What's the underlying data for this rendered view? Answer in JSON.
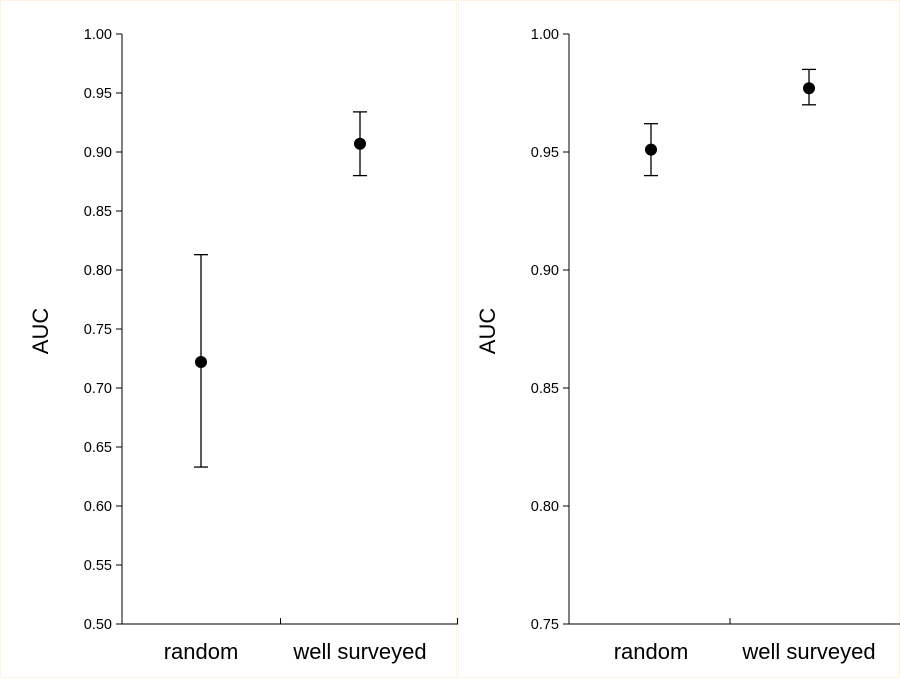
{
  "chart_data": [
    {
      "type": "scatter",
      "title": "",
      "xlabel": "",
      "ylabel": "AUC",
      "ylim": [
        0.5,
        1.0
      ],
      "yticks": [
        0.5,
        0.55,
        0.6,
        0.65,
        0.7,
        0.75,
        0.8,
        0.85,
        0.9,
        0.95,
        1.0
      ],
      "ytick_labels": [
        "0.50",
        "0.55",
        "0.60",
        "0.65",
        "0.70",
        "0.75",
        "0.80",
        "0.85",
        "0.90",
        "0.95",
        "1.00"
      ],
      "categories": [
        "random",
        "well surveyed"
      ],
      "points": [
        {
          "category": "random",
          "y": 0.722,
          "ylow": 0.633,
          "yhigh": 0.813
        },
        {
          "category": "well surveyed",
          "y": 0.907,
          "ylow": 0.88,
          "yhigh": 0.934
        }
      ],
      "grid": false,
      "marker_color": "#000000"
    },
    {
      "type": "scatter",
      "title": "",
      "xlabel": "",
      "ylabel": "AUC",
      "ylim": [
        0.75,
        1.0
      ],
      "yticks": [
        0.75,
        0.8,
        0.85,
        0.9,
        0.95,
        1.0
      ],
      "ytick_labels": [
        "0.75",
        "0.80",
        "0.85",
        "0.90",
        "0.95",
        "1.00"
      ],
      "categories": [
        "random",
        "well surveyed"
      ],
      "points": [
        {
          "category": "random",
          "y": 0.951,
          "ylow": 0.94,
          "yhigh": 0.962
        },
        {
          "category": "well surveyed",
          "y": 0.977,
          "ylow": 0.97,
          "yhigh": 0.985
        }
      ],
      "grid": false,
      "marker_color": "#000000"
    }
  ]
}
